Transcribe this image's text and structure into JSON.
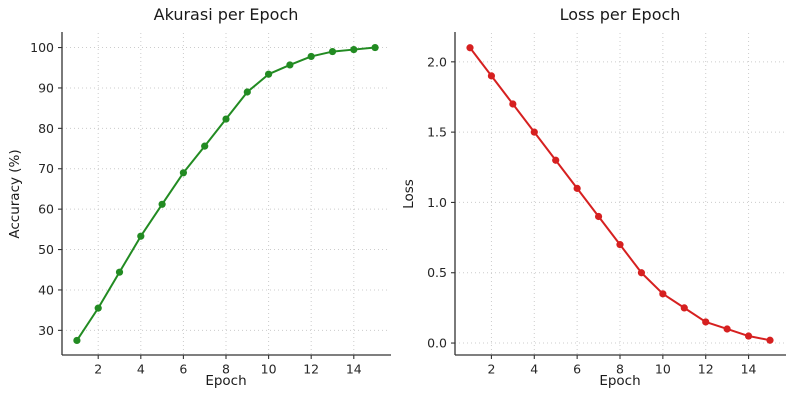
{
  "figure": {
    "background": "#ffffff",
    "spine_color": "#333333",
    "grid_color": "#cccccc",
    "tick_label_color": "#262626",
    "title_color": "#1a1a1a"
  },
  "chart_data": [
    {
      "type": "line",
      "title": "Akurasi per Epoch",
      "xlabel": "Epoch",
      "ylabel": "Accuracy (%)",
      "color": "#228B22",
      "marker": "circle",
      "grid": true,
      "legend": "none",
      "x": [
        1,
        2,
        3,
        4,
        5,
        6,
        7,
        8,
        9,
        10,
        11,
        12,
        13,
        14,
        15
      ],
      "y": [
        27.5,
        35.5,
        44.4,
        53.3,
        61.2,
        69.0,
        75.6,
        82.3,
        89.0,
        93.4,
        95.7,
        97.8,
        99.0,
        99.5,
        100.0
      ],
      "xlim": [
        0.3,
        15.7
      ],
      "ylim": [
        23.9,
        103.6
      ],
      "xticks": [
        2,
        4,
        6,
        8,
        10,
        12,
        14
      ],
      "xtick_labels": [
        "2",
        "4",
        "6",
        "8",
        "10",
        "12",
        "14"
      ],
      "yticks": [
        30,
        40,
        50,
        60,
        70,
        80,
        90,
        100
      ],
      "ytick_labels": [
        "30",
        "40",
        "50",
        "60",
        "70",
        "80",
        "90",
        "100"
      ]
    },
    {
      "type": "line",
      "title": "Loss per Epoch",
      "xlabel": "Epoch",
      "ylabel": "Loss",
      "color": "#d62020",
      "marker": "circle",
      "grid": true,
      "legend": "none",
      "x": [
        1,
        2,
        3,
        4,
        5,
        6,
        7,
        8,
        9,
        10,
        11,
        12,
        13,
        14,
        15
      ],
      "y": [
        2.1,
        1.9,
        1.7,
        1.5,
        1.3,
        1.1,
        0.9,
        0.7,
        0.5,
        0.35,
        0.25,
        0.15,
        0.1,
        0.05,
        0.02
      ],
      "xlim": [
        0.3,
        15.7
      ],
      "ylim": [
        -0.085,
        2.205
      ],
      "xticks": [
        2,
        4,
        6,
        8,
        10,
        12,
        14
      ],
      "xtick_labels": [
        "2",
        "4",
        "6",
        "8",
        "10",
        "12",
        "14"
      ],
      "yticks": [
        0.0,
        0.5,
        1.0,
        1.5,
        2.0
      ],
      "ytick_labels": [
        "0.0",
        "0.5",
        "1.0",
        "1.5",
        "2.0"
      ]
    }
  ]
}
